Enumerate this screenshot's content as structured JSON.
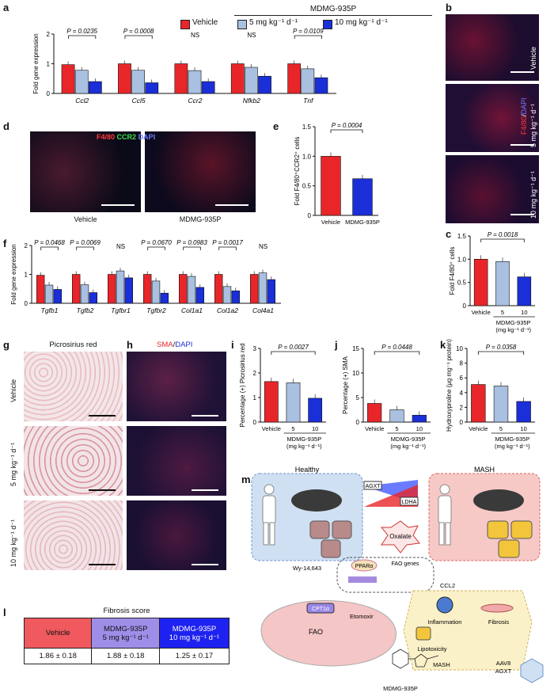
{
  "panels": {
    "a": "a",
    "b": "b",
    "c": "c",
    "d": "d",
    "e": "e",
    "f": "f",
    "g": "g",
    "h": "h",
    "i": "i",
    "j": "j",
    "k": "k",
    "l": "l",
    "m": "m"
  },
  "colors": {
    "vehicle": "#e8262a",
    "dose5": "#a9c0e0",
    "dose10": "#1a2fd8",
    "mash_bg": "#f6c9c6",
    "healthy_bg": "#cfe0f3",
    "inflam_bg": "#fbf1c9"
  },
  "legend": {
    "group_title": "MDMG-935P",
    "vehicle": "Vehicle",
    "dose5": "5 mg kg⁻¹ d⁻¹",
    "dose10": "10 mg kg⁻¹ d⁻¹"
  },
  "chart_data": [
    {
      "id": "a",
      "type": "bar",
      "ylabel": "Fold gene expression",
      "ylim": [
        0,
        2
      ],
      "yticks": [
        0,
        1,
        2
      ],
      "categories": [
        "Ccl2",
        "Ccl5",
        "Ccr2",
        "Nfkb2",
        "Tnf"
      ],
      "series": [
        {
          "name": "Vehicle",
          "values": [
            0.97,
            1.0,
            1.0,
            1.0,
            1.0
          ]
        },
        {
          "name": "5 mg kg⁻¹ d⁻¹",
          "values": [
            0.78,
            0.78,
            0.77,
            0.88,
            0.83
          ]
        },
        {
          "name": "10 mg kg⁻¹ d⁻¹",
          "values": [
            0.4,
            0.36,
            0.4,
            0.58,
            0.53
          ]
        }
      ],
      "stats": [
        {
          "text": "P = 0.0235",
          "cat": 0
        },
        {
          "text": "P = 0.0008",
          "cat": 1
        },
        {
          "text": "NS",
          "cat": 2
        },
        {
          "text": "NS",
          "cat": 3
        },
        {
          "text": "P = 0.0109",
          "cat": 4
        }
      ]
    },
    {
      "id": "e",
      "type": "bar",
      "ylabel": "Fold F4/80⁺CCR2⁺ cells",
      "ylim": [
        0,
        1.5
      ],
      "yticks": [
        "0",
        "0.5",
        "1.0",
        "1.5"
      ],
      "categories": [
        "Vehicle",
        "MDMG-935P"
      ],
      "values": [
        1.0,
        0.62
      ],
      "stat": "P = 0.0004"
    },
    {
      "id": "f",
      "type": "bar",
      "ylabel": "Fold gene expression",
      "ylim": [
        0,
        2
      ],
      "yticks": [
        0,
        1,
        2
      ],
      "categories": [
        "Tgfb1",
        "Tgfb2",
        "Tgfbr1",
        "Tgfbr2",
        "Col1a1",
        "Col1a2",
        "Col4a1"
      ],
      "series": [
        {
          "name": "Vehicle",
          "values": [
            0.97,
            1.0,
            1.0,
            1.0,
            1.0,
            1.0,
            1.0
          ]
        },
        {
          "name": "5 mg kg⁻¹ d⁻¹",
          "values": [
            0.63,
            0.64,
            1.12,
            0.77,
            0.93,
            0.58,
            1.05
          ]
        },
        {
          "name": "10 mg kg⁻¹ d⁻¹",
          "values": [
            0.48,
            0.37,
            0.88,
            0.35,
            0.55,
            0.43,
            0.82
          ]
        }
      ],
      "stats": [
        {
          "text": "P = 0.0468",
          "cat": 0
        },
        {
          "text": "P = 0.0069",
          "cat": 1
        },
        {
          "text": "NS",
          "cat": 2
        },
        {
          "text": "P = 0.0670",
          "cat": 3
        },
        {
          "text": "P = 0.0983",
          "cat": 4
        },
        {
          "text": "P = 0.0017",
          "cat": 5
        },
        {
          "text": "NS",
          "cat": 6
        }
      ]
    },
    {
      "id": "c",
      "type": "bar",
      "ylabel": "Fold F4/80⁺ cells",
      "ylim": [
        0,
        1.5
      ],
      "yticks": [
        "0",
        "0.5",
        "1.0",
        "1.5"
      ],
      "categories": [
        "Vehicle",
        "5",
        "10"
      ],
      "values": [
        1.0,
        0.95,
        0.62
      ],
      "stat": "P = 0.0018",
      "group": "MDMG-935P",
      "unit": "(mg kg⁻¹ d⁻¹)"
    },
    {
      "id": "i",
      "type": "bar",
      "ylabel": "Percentage (+) Picrosirius red",
      "ylim": [
        0,
        3
      ],
      "yticks": [
        0,
        1,
        2,
        3
      ],
      "categories": [
        "Vehicle",
        "5",
        "10"
      ],
      "values": [
        1.65,
        1.6,
        0.97
      ],
      "stat": "P = 0.0027",
      "group": "MDMG-935P",
      "unit": "(mg kg⁻¹ d⁻¹)"
    },
    {
      "id": "j",
      "type": "bar",
      "ylabel": "Percentage (+) SMA",
      "ylim": [
        0,
        15
      ],
      "yticks": [
        0,
        5,
        10,
        15
      ],
      "categories": [
        "Vehicle",
        "5",
        "10"
      ],
      "values": [
        3.8,
        2.5,
        1.4
      ],
      "stat": "P = 0.0448",
      "group": "MDMG-935P",
      "unit": "(mg kg⁻¹ d⁻¹)"
    },
    {
      "id": "k",
      "type": "bar",
      "ylabel": "Hydroxyproline (μg mg⁻¹ protein)",
      "ylim": [
        0,
        10
      ],
      "yticks": [
        0,
        2,
        4,
        6,
        8,
        10
      ],
      "categories": [
        "Vehicle",
        "5",
        "10"
      ],
      "values": [
        5.1,
        4.9,
        2.8
      ],
      "stat": "P = 0.0358",
      "group": "MDMG-935P",
      "unit": "(mg kg⁻¹ d⁻¹)"
    }
  ],
  "micro": {
    "b_rows": [
      "Vehicle",
      "5 mg kg⁻¹ d⁻¹",
      "10 mg kg⁻¹ d⁻¹"
    ],
    "b_stain": [
      "F4/80",
      "/",
      "DAPI"
    ],
    "d_stain": [
      "F4/80",
      "CCR2",
      "DAPI"
    ],
    "d_labels": [
      "Vehicle",
      "MDMG-935P"
    ],
    "g_title": "Picrosirius red",
    "g_rows": [
      "Vehicle",
      "5 mg kg⁻¹ d⁻¹",
      "10 mg kg⁻¹ d⁻¹"
    ],
    "h_stain": [
      "SMA",
      "/",
      "DAPI"
    ]
  },
  "fibrosis": {
    "title": "Fibrosis score",
    "headers": [
      "Vehicle",
      "MDMG-935P\n5 mg kg⁻¹ d⁻¹",
      "MDMG-935P\n10 mg kg⁻¹ d⁻¹"
    ],
    "values": [
      "1.86 ± 0.18",
      "1.88 ± 0.18",
      "1.25 ± 0.17"
    ]
  },
  "schematic": {
    "healthy": "Healthy",
    "mash": "MASH",
    "agxt": "AGXT",
    "ldha": "LDHA",
    "oxalate": "Oxalate",
    "wy": "Wy-14,643",
    "ppar": "PPARα",
    "fao_genes": "FAO genes",
    "ccl2": "CCL2",
    "cpt1": "CPT1α",
    "fao": "FAO",
    "etomoxir": "Etomoxir",
    "inflammation": "Inflammation",
    "fibrosis": "Fibrosis",
    "lipotoxicity": "Lipotoxicity",
    "mash2": "MASH",
    "aav8": "AAV8",
    "aav8_gene": "AGXT",
    "compound": "MDMG-935P"
  }
}
